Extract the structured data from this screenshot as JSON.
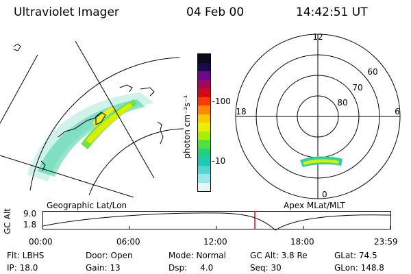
{
  "header": {
    "instrument": "Ultraviolet Imager",
    "date": "04 Feb 00",
    "time": "14:42:51 UT"
  },
  "geo_panel": {
    "caption": "Geographic Lat/Lon"
  },
  "colorbar": {
    "unit_label": "photon cm⁻²s⁻¹",
    "ticks": [
      "100",
      "10"
    ],
    "colors": [
      "#0a0a1a",
      "#1a0a4a",
      "#6a0a8a",
      "#a00a5a",
      "#d00a1a",
      "#ff3a00",
      "#ff8a00",
      "#ffc800",
      "#e8f000",
      "#a8f000",
      "#50e040",
      "#20d080",
      "#20c8b0",
      "#50d8d0",
      "#98e8e8",
      "#e8f4f4"
    ]
  },
  "polar_panel": {
    "caption": "Apex MLat/MLT",
    "mlt_labels": [
      "12",
      "18",
      "6",
      "0"
    ],
    "lat_labels": [
      "60",
      "70",
      "80"
    ]
  },
  "altitude_plot": {
    "ylabel": "GC Alt",
    "y_ticks": [
      "9.0",
      "1.8"
    ],
    "x_ticks": [
      "00:00",
      "06:00",
      "12:00",
      "18:00",
      "23:59"
    ],
    "marker_time": "14:42:51",
    "marker_color": "#ff0000"
  },
  "info": {
    "row1": [
      {
        "text": "Flt: LBHS"
      },
      {
        "text": "Door: Open"
      },
      {
        "text": "Mode: Normal"
      },
      {
        "text": "GC Alt: 3.8 Re"
      },
      {
        "text": "GLat: 74.5"
      }
    ],
    "row2": [
      {
        "text": "IP: 18.0"
      },
      {
        "text": "Gain: 13"
      },
      {
        "text": "Dsp:     4.0"
      },
      {
        "text": "Seq: 30"
      },
      {
        "text": "GLon: 148.8"
      }
    ]
  }
}
